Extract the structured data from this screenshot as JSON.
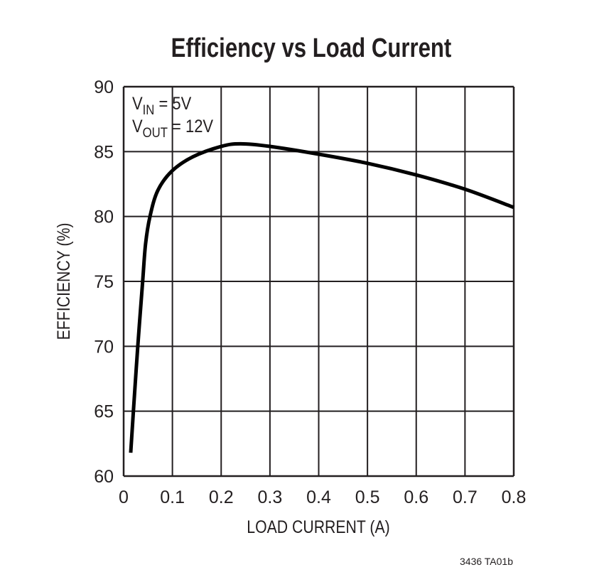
{
  "chart_data": {
    "type": "line",
    "title": "Efficiency vs Load Current",
    "xlabel": "LOAD CURRENT (A)",
    "ylabel": "EFFICIENCY (%)",
    "xlim": [
      0,
      0.8
    ],
    "ylim": [
      60,
      90
    ],
    "xticks": [
      "0",
      "0.1",
      "0.2",
      "0.3",
      "0.4",
      "0.5",
      "0.6",
      "0.7",
      "0.8"
    ],
    "yticks": [
      "60",
      "65",
      "70",
      "75",
      "80",
      "85",
      "90"
    ],
    "grid": true,
    "annotations": {
      "vin": {
        "main": "V",
        "sub": "IN",
        "rest": " = 5V"
      },
      "vout": {
        "main": "V",
        "sub": "OUT",
        "rest": " = 12V"
      }
    },
    "series": [
      {
        "x": [
          0.0145,
          0.02,
          0.029,
          0.039,
          0.045,
          0.054,
          0.07,
          0.099,
          0.142,
          0.2,
          0.24,
          0.3,
          0.4,
          0.5,
          0.6,
          0.7,
          0.8
        ],
        "y": [
          61.8,
          65,
          70,
          75,
          77.9,
          80,
          82.0,
          83.5,
          84.6,
          85.4,
          85.6,
          85.4,
          84.8,
          84.1,
          83.2,
          82.1,
          80.7
        ],
        "color": "#000000"
      }
    ],
    "footnote": "3436 TA01b"
  }
}
